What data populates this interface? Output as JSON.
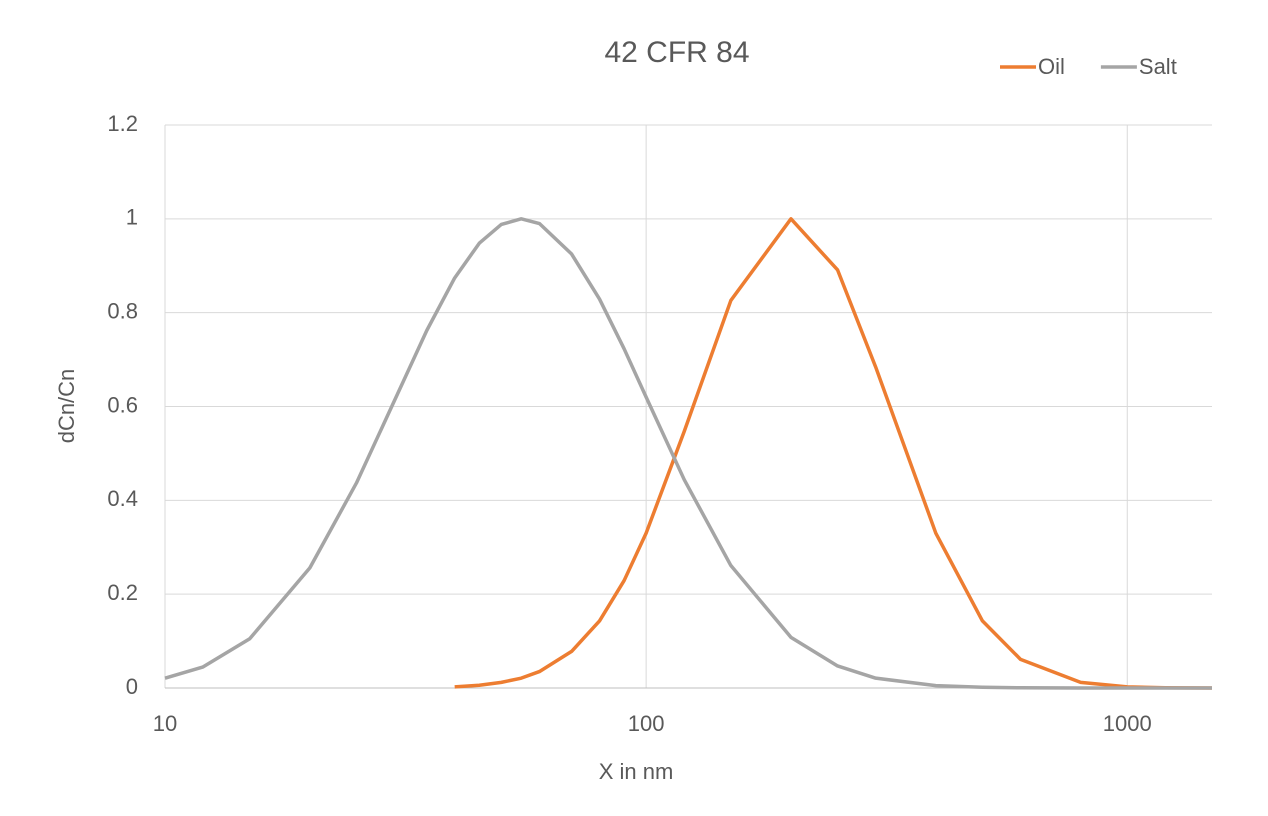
{
  "chart_data": {
    "type": "line",
    "title": "42 CFR 84",
    "x_label": "X in nm",
    "y_label": "dCn/Cn",
    "x": [
      10,
      12,
      15,
      20,
      25,
      30,
      35,
      40,
      45,
      50,
      55,
      60,
      70,
      80,
      90,
      100,
      120,
      150,
      200,
      250,
      300,
      400,
      500,
      600,
      800,
      1000,
      1200,
      1500
    ],
    "series": [
      {
        "name": "Oil",
        "color": "#ed7d31",
        "values": [
          null,
          null,
          null,
          null,
          null,
          null,
          null,
          0.0025,
          0.0058,
          0.012,
          0.021,
          0.035,
          0.078,
          0.143,
          0.229,
          0.33,
          0.547,
          0.826,
          1,
          0.891,
          0.684,
          0.33,
          0.143,
          0.061,
          0.012,
          0.0025,
          0.0006,
          0.0001
        ]
      },
      {
        "name": "Salt",
        "color": "#a5a5a5",
        "values": [
          0.021,
          0.045,
          0.105,
          0.256,
          0.437,
          0.613,
          0.762,
          0.874,
          0.948,
          0.988,
          1,
          0.99,
          0.925,
          0.829,
          0.723,
          0.62,
          0.444,
          0.261,
          0.108,
          0.047,
          0.021,
          0.005,
          0.0015,
          0.0004,
          0,
          0,
          0,
          0
        ]
      }
    ],
    "xlim": [
      10,
      1500
    ],
    "xticks": [
      10,
      100,
      1000
    ],
    "xscale": "log",
    "ylim": [
      0,
      1.2
    ],
    "yticks": [
      0,
      0.2,
      0.4,
      0.6,
      0.8,
      1,
      1.2
    ],
    "grid": true,
    "legend": "top-right"
  }
}
